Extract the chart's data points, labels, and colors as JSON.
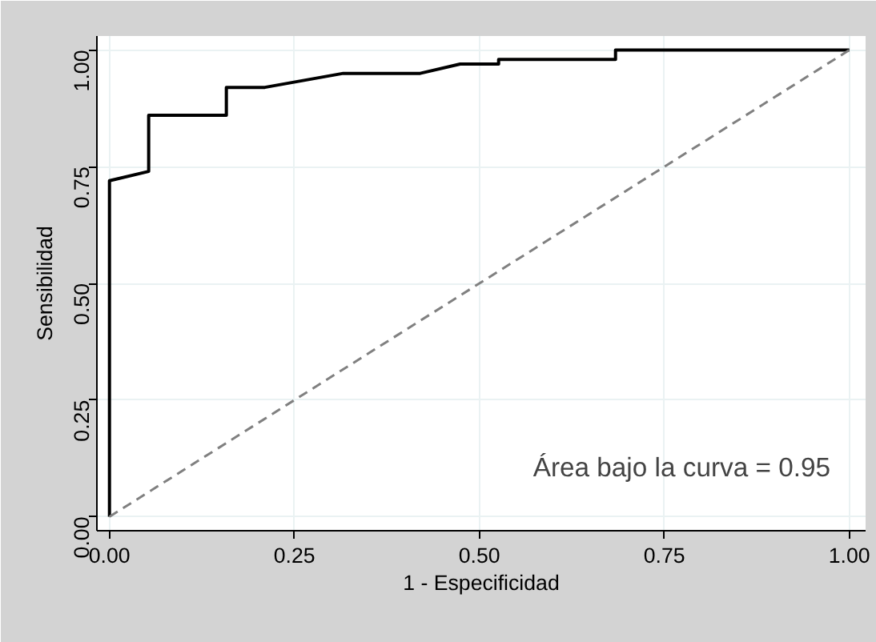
{
  "chart_data": {
    "type": "line",
    "xlabel": "1 - Especificidad",
    "ylabel": "Sensibilidad",
    "series": [
      {
        "x": [
          0,
          0,
          0.053,
          0.053,
          0.158,
          0.158,
          0.21,
          0.316,
          0.42,
          0.474,
          0.526,
          0.526,
          0.684,
          0.684,
          1
        ],
        "values": [
          0,
          0.72,
          0.74,
          0.86,
          0.86,
          0.92,
          0.92,
          0.95,
          0.95,
          0.97,
          0.97,
          0.98,
          0.98,
          1.0,
          1.0
        ],
        "color": "#000000",
        "line_style": "solid"
      },
      {
        "x": [
          0,
          1
        ],
        "values": [
          0,
          1
        ],
        "color": "#808080",
        "line_style": "dashed"
      }
    ],
    "xlim": [
      -0.017,
      1.022
    ],
    "ylim": [
      -0.03,
      1.03
    ],
    "xticks": [
      {
        "value": 0,
        "label": "0.00"
      },
      {
        "value": 0.25,
        "label": "0.25"
      },
      {
        "value": 0.5,
        "label": "0.50"
      },
      {
        "value": 0.75,
        "label": "0.75"
      },
      {
        "value": 1,
        "label": "1.00"
      }
    ],
    "yticks": [
      {
        "value": 0,
        "label": "0.00"
      },
      {
        "value": 0.25,
        "label": "0.25"
      },
      {
        "value": 0.5,
        "label": "0.50"
      },
      {
        "value": 0.75,
        "label": "0.75"
      },
      {
        "value": 1,
        "label": "1.00"
      }
    ],
    "grid": true,
    "annotations": [
      "Área bajo la curva = 0.95"
    ]
  }
}
